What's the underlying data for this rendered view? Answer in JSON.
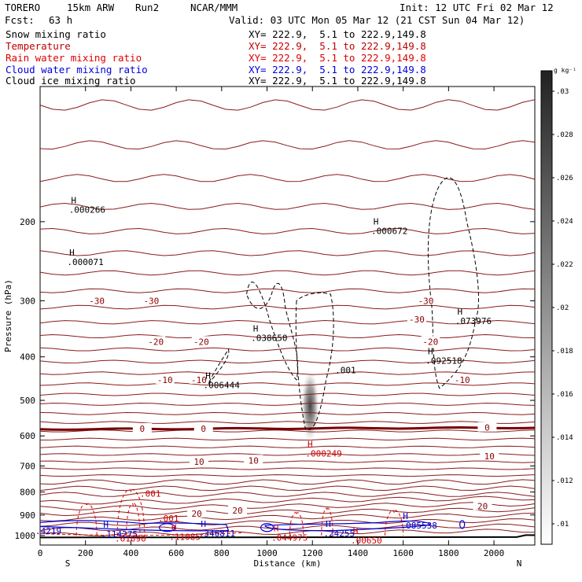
{
  "header": {
    "model": "TORERO",
    "grid": "15km ARW",
    "run": "Run2",
    "org": "NCAR/MMM",
    "init": "Init: 12 UTC Fri 02 Mar 12",
    "fcst_label": "Fcst:",
    "fcst_value": "63 h",
    "valid": "Valid: 03 UTC Mon 05 Mar 12 (21 CST Sun 04 Mar 12)"
  },
  "fields": [
    {
      "name": "Snow mixing ratio",
      "color": "#000000",
      "xy": "XY= 222.9,  5.1 to 222.9,149.8"
    },
    {
      "name": "Temperature",
      "color": "#c00000",
      "xy": "XY= 222.9,  5.1 to 222.9,149.8"
    },
    {
      "name": "Rain water mixing ratio",
      "color": "#e00000",
      "xy": "XY= 222.9,  5.1 to 222.9,149.8"
    },
    {
      "name": "Cloud water mixing ratio",
      "color": "#0000e0",
      "xy": "XY= 222.9,  5.1 to 222.9,149.8"
    },
    {
      "name": "Cloud ice mixing ratio",
      "color": "#000000",
      "xy": "XY= 222.9,  5.1 to 222.9,149.8"
    }
  ],
  "chart_data": {
    "type": "contour",
    "xlabel": "Distance (km)",
    "ylabel": "Pressure (hPa)",
    "xlim": [
      0,
      2180
    ],
    "ylim": [
      1050,
      100
    ],
    "y_log": true,
    "x_ticks": [
      0,
      200,
      400,
      600,
      800,
      1000,
      1200,
      1400,
      1600,
      1800,
      2000
    ],
    "y_ticks": [
      200,
      300,
      400,
      500,
      600,
      700,
      800,
      900,
      1000
    ],
    "x_end_labels": {
      "left": "S",
      "right": "N"
    },
    "colorbar": {
      "unit": "g kg⁻¹",
      "ticks": [
        ".01",
        ".012",
        ".014",
        ".016",
        ".018",
        ".02",
        ".022",
        ".024",
        ".026",
        ".028",
        ".03"
      ]
    },
    "temperature_labels": [
      {
        "x": 250,
        "p": 300,
        "text": "-30"
      },
      {
        "x": 1700,
        "p": 300,
        "text": "-30"
      },
      {
        "x": 1660,
        "p": 330,
        "text": "-30"
      },
      {
        "x": 490,
        "p": 300,
        "text": "-30"
      },
      {
        "x": 510,
        "p": 370,
        "text": "-20"
      },
      {
        "x": 710,
        "p": 370,
        "text": "-20"
      },
      {
        "x": 1720,
        "p": 370,
        "text": "-20"
      },
      {
        "x": 550,
        "p": 450,
        "text": "-10"
      },
      {
        "x": 700,
        "p": 450,
        "text": "-10"
      },
      {
        "x": 1860,
        "p": 450,
        "text": "-10"
      },
      {
        "x": 450,
        "p": 578,
        "text": "0"
      },
      {
        "x": 720,
        "p": 578,
        "text": "0"
      },
      {
        "x": 1970,
        "p": 575,
        "text": "0"
      },
      {
        "x": 700,
        "p": 685,
        "text": "10"
      },
      {
        "x": 940,
        "p": 680,
        "text": "10"
      },
      {
        "x": 1980,
        "p": 665,
        "text": "10"
      },
      {
        "x": 690,
        "p": 893,
        "text": "20"
      },
      {
        "x": 870,
        "p": 880,
        "text": "20"
      },
      {
        "x": 1950,
        "p": 860,
        "text": "20"
      }
    ],
    "extrema_labels": [
      {
        "x": 140,
        "p": 238,
        "text": "H",
        "value": ".000071",
        "color": "#000000"
      },
      {
        "x": 148,
        "p": 182,
        "text": "H",
        "value": ".000266",
        "color": "#000000"
      },
      {
        "x": 1480,
        "p": 203,
        "text": "H",
        "value": ".000672",
        "color": "#000000"
      },
      {
        "x": 1850,
        "p": 322,
        "text": "H",
        "value": ".073976",
        "color": "#000000"
      },
      {
        "x": 1720,
        "p": 395,
        "text": "H",
        "value": ".092518",
        "color": "#000000"
      },
      {
        "x": 950,
        "p": 351,
        "text": "H",
        "value": ".038650",
        "color": "#000000"
      },
      {
        "x": 740,
        "p": 447,
        "text": "H",
        "value": ".006444",
        "color": "#000000"
      },
      {
        "x": 1190,
        "p": 636,
        "text": "H",
        "value": ".000249",
        "color": "#cc0000"
      },
      {
        "x": 1610,
        "p": 920,
        "text": "H",
        "value": ".085538",
        "color": "#0000cc"
      },
      {
        "x": 290,
        "p": 960,
        "text": "H",
        "value": ".114275",
        "color": "#0000cc"
      },
      {
        "x": 720,
        "p": 957,
        "text": "H",
        "value": ".346811",
        "color": "#0000cc"
      },
      {
        "x": 1270,
        "p": 957,
        "text": "H",
        "value": ".24255",
        "color": "#0000cc"
      },
      {
        "x": 590,
        "p": 975,
        "text": "H",
        "value": ".11085",
        "color": "#cc0000"
      },
      {
        "x": 1040,
        "p": 978,
        "text": "H",
        "value": ".044975",
        "color": "#cc0000"
      },
      {
        "x": 1390,
        "p": 992,
        "text": "H",
        "value": ".00650",
        "color": "#cc0000"
      },
      {
        "x": 350,
        "p": 982,
        "text": "",
        "value": ".61090",
        "color": "#cc0000"
      },
      {
        "x": 0,
        "p": 945,
        "text": "",
        "value": ".4219",
        "color": "#0000cc"
      }
    ],
    "contour_value_labels": [
      {
        "x": 1300,
        "p": 435,
        "text": ".001",
        "color": "#000000"
      },
      {
        "x": 440,
        "p": 820,
        "text": ".001",
        "color": "#cc0000"
      },
      {
        "x": 520,
        "p": 930,
        "text": ".001",
        "color": "#cc0000"
      }
    ]
  }
}
